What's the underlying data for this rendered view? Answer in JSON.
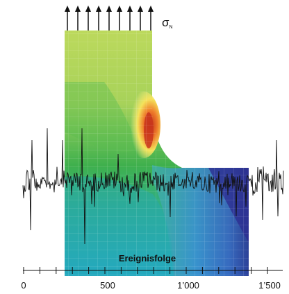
{
  "stress_label": {
    "symbol": "σ",
    "subscript": "N"
  },
  "sequence_label": "Ereignisfolge",
  "axis": {
    "ticks": [
      "0",
      "500",
      "1’000",
      "1’500"
    ]
  },
  "colors": {
    "field_top": "#b9d85a",
    "field_mid": "#3fb04d",
    "field_low": "#2fae88",
    "field_bottom": "#22a9c8",
    "flange_light": "#5fa6dc",
    "flange_dark": "#2d2e92",
    "hotspot": "#d23a1c",
    "trace": "#111111",
    "arrows": "#111111"
  },
  "icons": [
    "up-arrow-icon"
  ]
}
